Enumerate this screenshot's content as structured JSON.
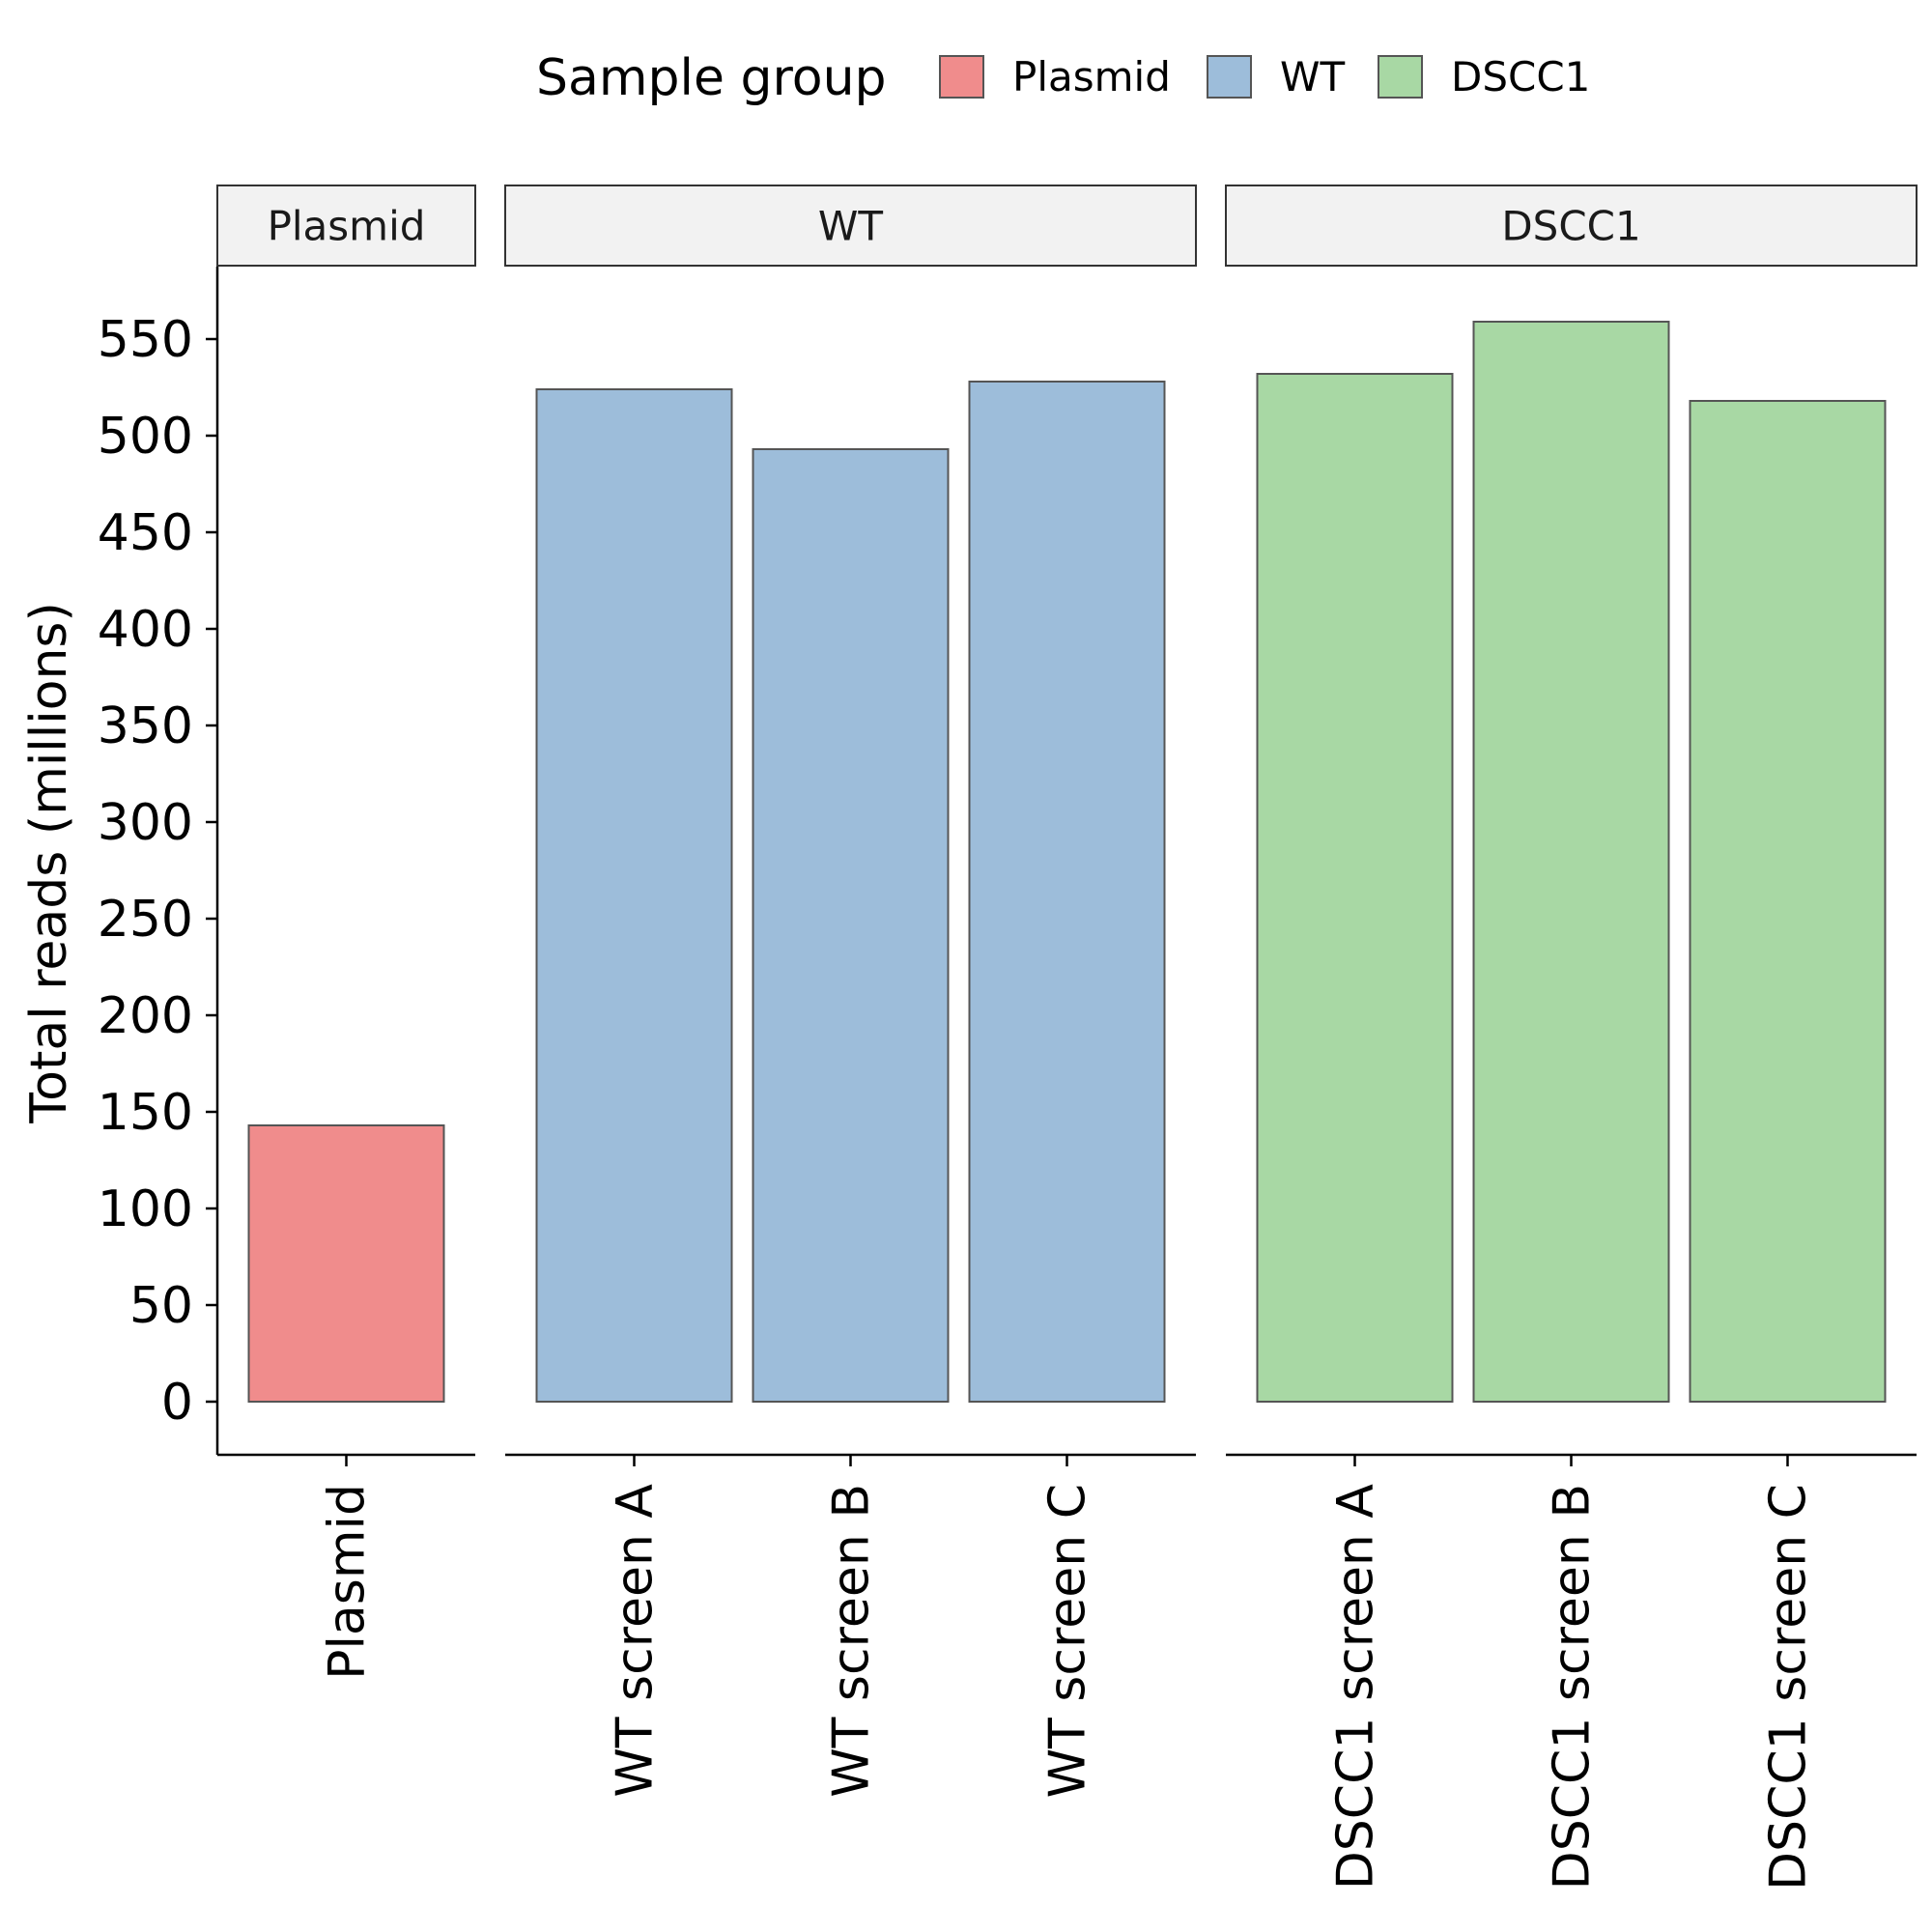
{
  "chart_data": {
    "type": "bar",
    "ylabel": "Total reads (millions)",
    "ylim": [
      -27.5,
      585
    ],
    "yticks": [
      0,
      50,
      100,
      150,
      200,
      250,
      300,
      350,
      400,
      450,
      500,
      550
    ],
    "grid": false,
    "legend": {
      "title": "Sample group",
      "placement": "top",
      "entries": [
        {
          "label": "Plasmid",
          "color": "#F08C8C"
        },
        {
          "label": "WT",
          "color": "#9DBDDA"
        },
        {
          "label": "DSCC1",
          "color": "#A8D8A4"
        }
      ]
    },
    "facets": [
      {
        "name": "Plasmid",
        "color": "#F08C8C",
        "categories": [
          "Plasmid"
        ],
        "values": [
          143
        ]
      },
      {
        "name": "WT",
        "color": "#9DBDDA",
        "categories": [
          "WT screen A",
          "WT screen B",
          "WT screen C"
        ],
        "values": [
          524,
          493,
          528
        ]
      },
      {
        "name": "DSCC1",
        "color": "#A8D8A4",
        "categories": [
          "DSCC1 screen A",
          "DSCC1 screen B",
          "DSCC1 screen C"
        ],
        "values": [
          532,
          559,
          518
        ]
      }
    ]
  }
}
